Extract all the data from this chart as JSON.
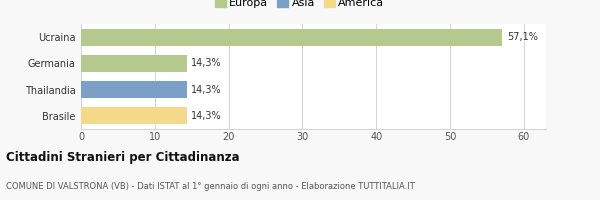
{
  "categories": [
    "Brasile",
    "Thailandia",
    "Germania",
    "Ucraina"
  ],
  "values": [
    14.3,
    14.3,
    14.3,
    57.1
  ],
  "colors": [
    "#f5d98b",
    "#7b9fc7",
    "#b5c98e",
    "#b5c98e"
  ],
  "labels": [
    "14,3%",
    "14,3%",
    "14,3%",
    "57,1%"
  ],
  "legend": [
    {
      "label": "Europa",
      "color": "#b5c98e"
    },
    {
      "label": "Asia",
      "color": "#7b9fc7"
    },
    {
      "label": "America",
      "color": "#f5d98b"
    }
  ],
  "xlim": [
    0,
    63
  ],
  "xticks": [
    0,
    10,
    20,
    30,
    40,
    50,
    60
  ],
  "title_bold": "Cittadini Stranieri per Cittadinanza",
  "subtitle": "COMUNE DI VALSTRONA (VB) - Dati ISTAT al 1° gennaio di ogni anno - Elaborazione TUTTITALIA.IT",
  "bg_color": "#f8f8f8",
  "plot_bg": "#ffffff",
  "grid_color": "#cccccc"
}
